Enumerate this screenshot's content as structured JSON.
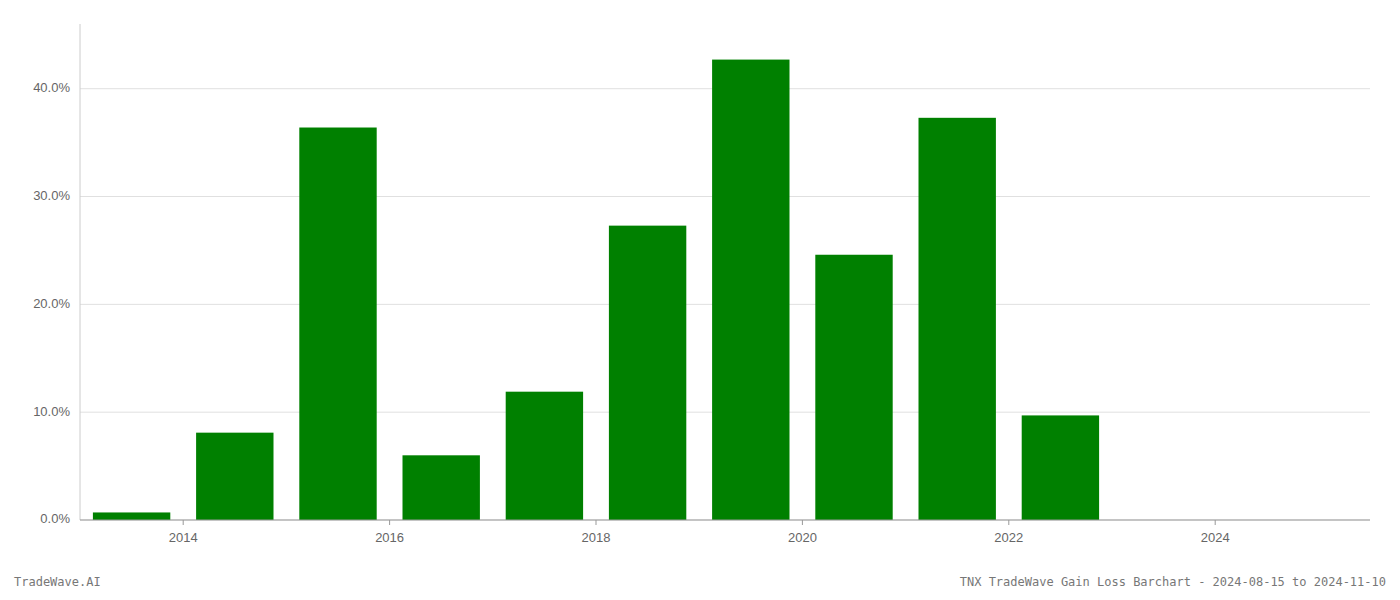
{
  "chart_data": {
    "type": "bar",
    "x": [
      2013,
      2014,
      2015,
      2016,
      2017,
      2018,
      2019,
      2020,
      2021,
      2022,
      2023
    ],
    "values": [
      0.007,
      0.081,
      0.364,
      0.06,
      0.119,
      0.273,
      0.427,
      0.246,
      0.373,
      0.097,
      0.0
    ],
    "color": "#008000",
    "xlim": [
      2012.5,
      2025.0
    ],
    "xticks": [
      {
        "value": 2013.5,
        "label": "2014"
      },
      {
        "value": 2015.5,
        "label": "2016"
      },
      {
        "value": 2017.5,
        "label": "2018"
      },
      {
        "value": 2019.5,
        "label": "2020"
      },
      {
        "value": 2021.5,
        "label": "2022"
      },
      {
        "value": 2023.5,
        "label": "2024"
      }
    ],
    "ylim": [
      0,
      0.46
    ],
    "yticks": [
      {
        "value": 0.0,
        "label": "0.0%"
      },
      {
        "value": 0.1,
        "label": "10.0%"
      },
      {
        "value": 0.2,
        "label": "20.0%"
      },
      {
        "value": 0.3,
        "label": "30.0%"
      },
      {
        "value": 0.4,
        "label": "40.0%"
      }
    ],
    "grid": true,
    "annotations": [
      "TradeWave.AI",
      "TNX TradeWave Gain Loss Barchart - 2024-08-15 to 2024-11-10"
    ]
  }
}
